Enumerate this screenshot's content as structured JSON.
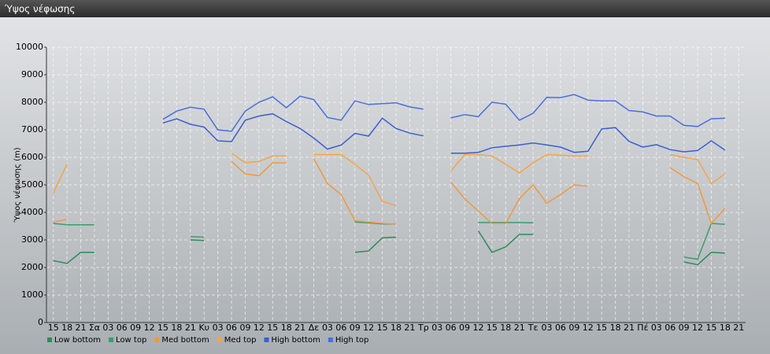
{
  "chart_data": {
    "type": "line",
    "title": "Ύψος νέφωσης",
    "y_label": "Ύψος νέφωσης (m)",
    "categories": [
      "15",
      "18",
      "21",
      "Σα",
      "03",
      "06",
      "09",
      "12",
      "15",
      "18",
      "21",
      "Κυ",
      "03",
      "06",
      "09",
      "12",
      "15",
      "18",
      "21",
      "Δε",
      "03",
      "06",
      "09",
      "12",
      "15",
      "18",
      "21",
      "Τρ",
      "03",
      "06",
      "09",
      "12",
      "15",
      "18",
      "21",
      "Τε",
      "03",
      "06",
      "09",
      "12",
      "15",
      "18",
      "21",
      "Πέ",
      "03",
      "06",
      "09",
      "12",
      "15",
      "18",
      "21"
    ],
    "series": [
      {
        "name": "Low bottom",
        "color": "#2e8b57",
        "values": [
          2250,
          2150,
          2550,
          2550,
          null,
          null,
          null,
          null,
          null,
          null,
          3000,
          2980,
          null,
          null,
          null,
          null,
          null,
          null,
          null,
          null,
          null,
          null,
          2550,
          2600,
          3080,
          3100,
          null,
          null,
          null,
          null,
          null,
          3330,
          2550,
          2750,
          3200,
          3200,
          null,
          null,
          null,
          null,
          null,
          null,
          null,
          null,
          null,
          null,
          2200,
          2100,
          2550,
          2520,
          null
        ]
      },
      {
        "name": "Low top",
        "color": "#3a9d6a",
        "values": [
          3600,
          3550,
          3550,
          3550,
          null,
          null,
          null,
          null,
          null,
          null,
          3120,
          3100,
          null,
          null,
          null,
          null,
          null,
          null,
          null,
          null,
          null,
          null,
          3650,
          3620,
          3580,
          3580,
          null,
          null,
          null,
          null,
          null,
          3630,
          3630,
          3630,
          3630,
          3620,
          null,
          null,
          null,
          null,
          null,
          null,
          null,
          null,
          null,
          null,
          2380,
          2300,
          3600,
          3570,
          null
        ]
      },
      {
        "name": "Med bottom",
        "color": "#ee9a3c",
        "values": [
          3650,
          3750,
          null,
          null,
          null,
          null,
          null,
          null,
          null,
          null,
          null,
          null,
          null,
          5850,
          5400,
          5330,
          5800,
          5800,
          null,
          5950,
          5050,
          4650,
          3700,
          3650,
          3600,
          3580,
          null,
          null,
          null,
          5100,
          4500,
          4050,
          3600,
          3600,
          4500,
          5000,
          4330,
          4650,
          5000,
          4950,
          null,
          null,
          null,
          null,
          null,
          5620,
          5300,
          5050,
          3600,
          4150,
          null
        ]
      },
      {
        "name": "Med top",
        "color": "#f5a445",
        "values": [
          4700,
          5750,
          null,
          null,
          null,
          null,
          null,
          null,
          null,
          null,
          null,
          null,
          null,
          6150,
          5800,
          5850,
          6050,
          6050,
          null,
          6100,
          6100,
          6100,
          5750,
          5350,
          4400,
          4250,
          null,
          null,
          null,
          5500,
          6100,
          6100,
          6050,
          5750,
          5430,
          5800,
          6100,
          6080,
          6050,
          6050,
          null,
          null,
          null,
          null,
          null,
          6100,
          6000,
          5920,
          5050,
          5400,
          null
        ]
      },
      {
        "name": "High bottom",
        "color": "#3a5fd0",
        "values": [
          null,
          null,
          null,
          null,
          null,
          null,
          null,
          null,
          7250,
          7400,
          7200,
          7100,
          6600,
          6570,
          7350,
          7500,
          7580,
          7300,
          7050,
          6700,
          6300,
          6450,
          6870,
          6770,
          7420,
          7050,
          6880,
          6780,
          null,
          6150,
          6150,
          6180,
          6350,
          6400,
          6450,
          6520,
          6450,
          6370,
          6180,
          6220,
          7030,
          7080,
          6580,
          6370,
          6460,
          6280,
          6200,
          6250,
          6600,
          6260,
          null
        ]
      },
      {
        "name": "High top",
        "color": "#4a6ee0",
        "values": [
          null,
          null,
          null,
          null,
          null,
          null,
          null,
          null,
          7380,
          7680,
          7820,
          7750,
          7000,
          6950,
          7680,
          8000,
          8200,
          7800,
          8220,
          8100,
          7450,
          7350,
          8050,
          7920,
          7950,
          7980,
          7830,
          7750,
          null,
          7430,
          7550,
          7480,
          8000,
          7930,
          7350,
          7600,
          8180,
          8170,
          8280,
          8080,
          8050,
          8050,
          7700,
          7650,
          7500,
          7500,
          7160,
          7120,
          7400,
          7420,
          null
        ]
      }
    ],
    "ylim": [
      0,
      10000
    ],
    "yticks": [
      0,
      1000,
      2000,
      3000,
      4000,
      5000,
      6000,
      7000,
      8000,
      9000,
      10000
    ],
    "grid": true,
    "legend": "bottom-left"
  }
}
